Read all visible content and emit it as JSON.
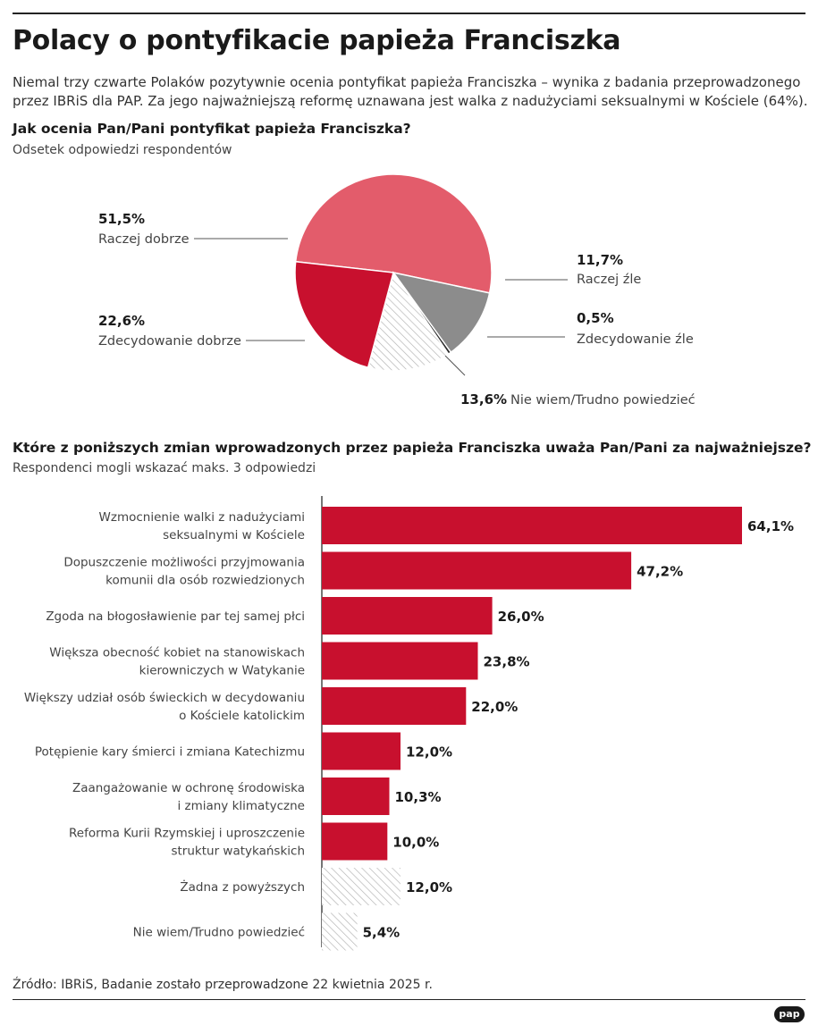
{
  "title": "Polacy o pontyfikacie papieża Franciszka",
  "lead": "Niemal trzy czwarte Polaków pozytywnie ocenia pontyfikat papieża Franciszka – wynika z badania przeprowadzonego przez IBRiS dla PAP. Za jego najważniejszą reformę uznawana jest walka z nadużyciami seksualnymi w Kościele (64%).",
  "colors": {
    "red": "#c8102e",
    "pink": "#e35c6b",
    "gray": "#8c8c8c",
    "dark_gray": "#2b2b2b",
    "hatch": "#b3b3b3"
  },
  "source": "Źródło: IBRiS, Badanie zostało przeprowadzone 22 kwietnia 2025 r.",
  "logo": "pap",
  "chart_data": [
    {
      "type": "pie",
      "title": "Jak ocenia Pan/Pani pontyfikat papieża Franciszka?",
      "subtitle": "Odsetek odpowiedzi respondentów",
      "slices": [
        {
          "label": "Raczej dobrze",
          "value": 51.5,
          "value_label": "51,5%",
          "color": "pink"
        },
        {
          "label": "Raczej źle",
          "value": 11.7,
          "value_label": "11,7%",
          "color": "gray"
        },
        {
          "label": "Zdecydowanie źle",
          "value": 0.5,
          "value_label": "0,5%",
          "color": "dark_gray"
        },
        {
          "label": "Nie wiem/Trudno powiedzieć",
          "value": 13.6,
          "value_label": "13,6%",
          "color": "hatch"
        },
        {
          "label": "Zdecydowanie dobrze",
          "value": 22.6,
          "value_label": "22,6%",
          "color": "red"
        }
      ]
    },
    {
      "type": "bar",
      "orientation": "horizontal",
      "title": "Które z poniższych zmian wprowadzonych przez papieża Franciszka uważa Pan/Pani za najważniejsze?",
      "subtitle": "Respondenci mogli wskazać maks. 3 odpowiedzi",
      "categories": [
        [
          "Wzmocnienie walki z nadużyciami",
          "seksualnymi w Kościele"
        ],
        [
          "Dopuszczenie możliwości przyjmowania",
          "komunii dla osób rozwiedzionych"
        ],
        [
          "Zgoda na błogosławienie par tej samej płci"
        ],
        [
          "Większa obecność kobiet na stanowiskach",
          "kierowniczych w Watykanie"
        ],
        [
          "Większy udział osób świeckich w decydowaniu",
          "o Kościele katolickim"
        ],
        [
          "Potępienie kary śmierci i zmiana Katechizmu"
        ],
        [
          "Zaangażowanie w ochronę środowiska",
          "i zmiany klimatyczne"
        ],
        [
          "Reforma Kurii Rzymskiej i uproszczenie",
          "struktur watykańskich"
        ],
        [
          "Żadna z powyższych"
        ],
        [
          "Nie wiem/Trudno powiedzieć"
        ]
      ],
      "values": [
        64.1,
        47.2,
        26.0,
        23.8,
        22.0,
        12.0,
        10.3,
        10.0,
        12.0,
        5.4
      ],
      "value_labels": [
        "64,1%",
        "47,2%",
        "26,0%",
        "23,8%",
        "22,0%",
        "12,0%",
        "10,3%",
        "10,0%",
        "12,0%",
        "5,4%"
      ],
      "bar_colors": [
        "red",
        "red",
        "red",
        "red",
        "red",
        "red",
        "red",
        "red",
        "hatch",
        "hatch"
      ]
    }
  ]
}
